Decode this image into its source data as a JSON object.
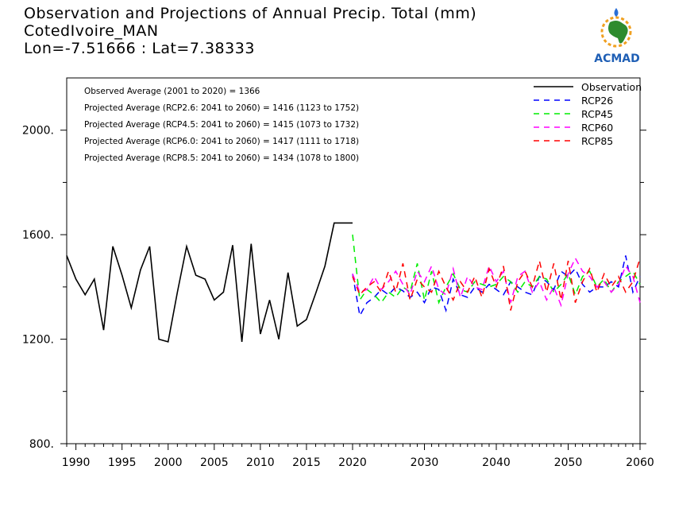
{
  "header": {
    "title": "Observation and Projections of Annual Precip. Total (mm)",
    "station": "CotedIvoire_MAN",
    "coords": "Lon=-7.51666 : Lat=7.38333",
    "logo_text": "ACMAD"
  },
  "stats": [
    "Observed Average (2001 to 2020) = 1366",
    "Projected Average (RCP2.6: 2041 to 2060) = 1416 (1123 to 1752)",
    "Projected Average (RCP4.5: 2041 to 2060) = 1415 (1073 to 1732)",
    "Projected Average (RCP6.0: 2041 to 2060) = 1417 (1111 to 1718)",
    "Projected Average (RCP8.5: 2041 to 2060) = 1434 (1078 to 1800)"
  ],
  "colors": {
    "observation": "#000000",
    "rcp26": "#0000ff",
    "rcp45": "#00ee00",
    "rcp60": "#ff00ff",
    "rcp85": "#ff0000"
  },
  "chart_data": {
    "type": "line",
    "ylim": [
      800,
      2200
    ],
    "yticks": [
      800,
      1200,
      1600,
      2000
    ],
    "ytick_labels": [
      "800.",
      "1200.",
      "1600.",
      "2000."
    ],
    "xticks_left": [
      1990,
      1995,
      2000,
      2005,
      2010,
      2015,
      2020
    ],
    "xticks_right": [
      2030,
      2040,
      2050,
      2060
    ],
    "legend_position": "top-right",
    "series": [
      {
        "name": "Observation",
        "style": "solid",
        "x": [
          1989,
          1990,
          1991,
          1992,
          1993,
          1994,
          1995,
          1996,
          1997,
          1998,
          1999,
          2000,
          2001,
          2002,
          2003,
          2004,
          2005,
          2006,
          2007,
          2008,
          2009,
          2010,
          2011,
          2012,
          2013,
          2014,
          2015,
          2016,
          2017,
          2018,
          2019,
          2020
        ],
        "values": [
          1520,
          1430,
          1370,
          1430,
          1235,
          1555,
          1445,
          1320,
          1465,
          1555,
          1200,
          1190,
          1380,
          1555,
          1445,
          1430,
          1350,
          1380,
          1560,
          1190,
          1565,
          1220,
          1350,
          1200,
          1455,
          1250,
          1275,
          1375,
          1480,
          1645,
          1645,
          1645
        ]
      },
      {
        "name": "RCP26",
        "style": "dashed",
        "x_start": 2020,
        "values": [
          1450,
          1290,
          1340,
          1360,
          1390,
          1370,
          1400,
          1385,
          1360,
          1380,
          1340,
          1400,
          1390,
          1310,
          1430,
          1370,
          1360,
          1400,
          1380,
          1410,
          1390,
          1370,
          1420,
          1400,
          1380,
          1370,
          1440,
          1420,
          1390,
          1460,
          1440,
          1470,
          1410,
          1380,
          1400,
          1400,
          1420,
          1400,
          1520,
          1380,
          1440
        ]
      },
      {
        "name": "RCP45",
        "style": "dashed",
        "x_start": 2020,
        "values": [
          1600,
          1350,
          1390,
          1370,
          1340,
          1380,
          1360,
          1400,
          1380,
          1490,
          1350,
          1460,
          1340,
          1400,
          1450,
          1390,
          1380,
          1420,
          1410,
          1400,
          1410,
          1440,
          1420,
          1380,
          1420,
          1400,
          1440,
          1430,
          1380,
          1410,
          1450,
          1370,
          1440,
          1460,
          1400,
          1430,
          1380,
          1420,
          1440,
          1460,
          1410
        ]
      },
      {
        "name": "RCP60",
        "style": "dashed",
        "x_start": 2020,
        "values": [
          1450,
          1380,
          1390,
          1440,
          1390,
          1420,
          1460,
          1410,
          1370,
          1460,
          1420,
          1480,
          1390,
          1370,
          1470,
          1360,
          1440,
          1400,
          1390,
          1480,
          1420,
          1460,
          1340,
          1440,
          1460,
          1380,
          1420,
          1350,
          1400,
          1330,
          1450,
          1510,
          1460,
          1440,
          1400,
          1420,
          1380,
          1410,
          1480,
          1440,
          1340
        ]
      },
      {
        "name": "RCP85",
        "style": "dashed",
        "x_start": 2020,
        "values": [
          1440,
          1370,
          1400,
          1420,
          1380,
          1460,
          1380,
          1490,
          1350,
          1430,
          1400,
          1380,
          1460,
          1400,
          1350,
          1420,
          1380,
          1440,
          1360,
          1470,
          1400,
          1480,
          1310,
          1420,
          1460,
          1400,
          1500,
          1380,
          1490,
          1350,
          1500,
          1340,
          1420,
          1470,
          1380,
          1450,
          1400,
          1440,
          1380,
          1420,
          1510
        ]
      }
    ]
  }
}
